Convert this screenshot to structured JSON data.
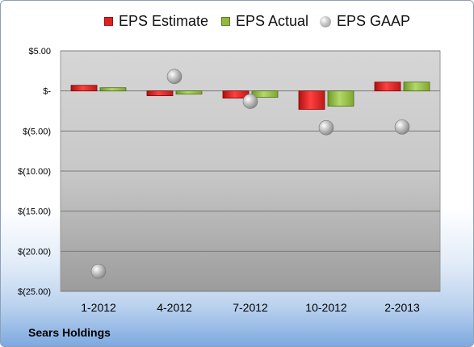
{
  "legend": {
    "estimate": "EPS Estimate",
    "actual": "EPS Actual",
    "gaap": "EPS GAAP"
  },
  "company": "Sears Holdings",
  "colors": {
    "estimate": "#e02020",
    "actual": "#8fba3c",
    "gaap": "#b5b5b5"
  },
  "chart_data": {
    "type": "bar",
    "categories": [
      "1-2012",
      "4-2012",
      "7-2012",
      "10-2012",
      "2-2013"
    ],
    "series": [
      {
        "name": "EPS Estimate",
        "style": "bar",
        "values": [
          0.7,
          -0.6,
          -0.9,
          -2.3,
          1.1
        ]
      },
      {
        "name": "EPS Actual",
        "style": "bar",
        "values": [
          0.4,
          -0.4,
          -0.8,
          -1.9,
          1.1
        ]
      },
      {
        "name": "EPS GAAP",
        "style": "marker",
        "values": [
          -22.5,
          1.8,
          -1.3,
          -4.6,
          -4.5
        ]
      }
    ],
    "ylim": [
      -25,
      5
    ],
    "yticks": [
      5,
      0,
      -5,
      -10,
      -15,
      -20,
      -25
    ],
    "ytick_labels": [
      "$5.00",
      "$-",
      "$(5.00)",
      "$(10.00)",
      "$(15.00)",
      "$(20.00)",
      "$(25.00)"
    ],
    "grid": true,
    "legend_position": "top"
  }
}
